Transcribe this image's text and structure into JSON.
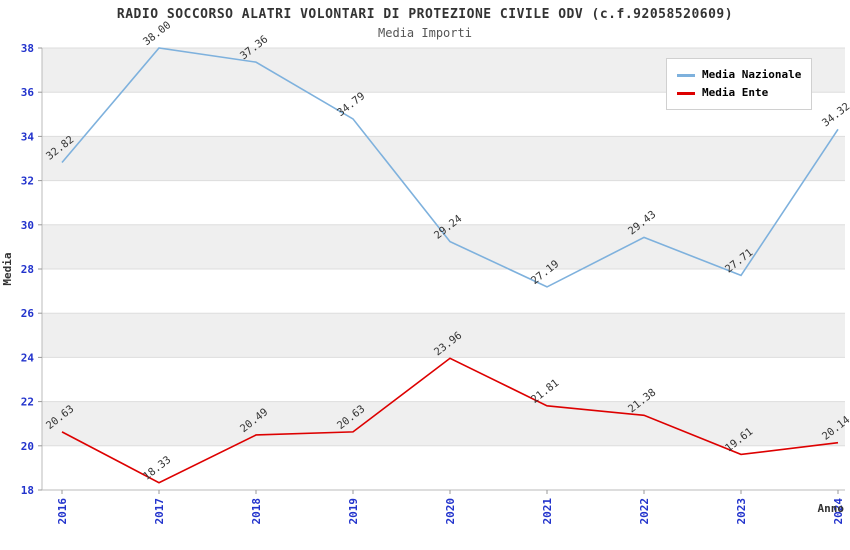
{
  "chart_data": {
    "type": "line",
    "title": "RADIO SOCCORSO ALATRI VOLONTARI DI PROTEZIONE CIVILE ODV (c.f.92058520609)",
    "subtitle": "Media Importi",
    "xlabel": "Anno",
    "ylabel": "Media",
    "categories": [
      "2016",
      "2017",
      "2018",
      "2019",
      "2020",
      "2021",
      "2022",
      "2023",
      "2024"
    ],
    "series": [
      {
        "name": "Media Nazionale",
        "color": "#7eb1dd",
        "values": [
          32.82,
          38.0,
          37.36,
          34.79,
          29.24,
          27.19,
          29.43,
          27.71,
          34.32
        ]
      },
      {
        "name": "Media Ente",
        "color": "#dd0000",
        "values": [
          20.63,
          18.33,
          20.49,
          20.63,
          23.96,
          21.81,
          21.38,
          19.61,
          20.14
        ]
      }
    ],
    "ylim": [
      18,
      38
    ],
    "ytick_step": 2,
    "yticks": [
      18,
      20,
      22,
      24,
      26,
      28,
      30,
      32,
      34,
      36,
      38
    ],
    "band_colors": [
      "#efefef",
      "#ffffff"
    ],
    "grid": true,
    "legend_position": "top-right",
    "axis_label_color": "#2233cc",
    "data_label_color": "#333333"
  }
}
